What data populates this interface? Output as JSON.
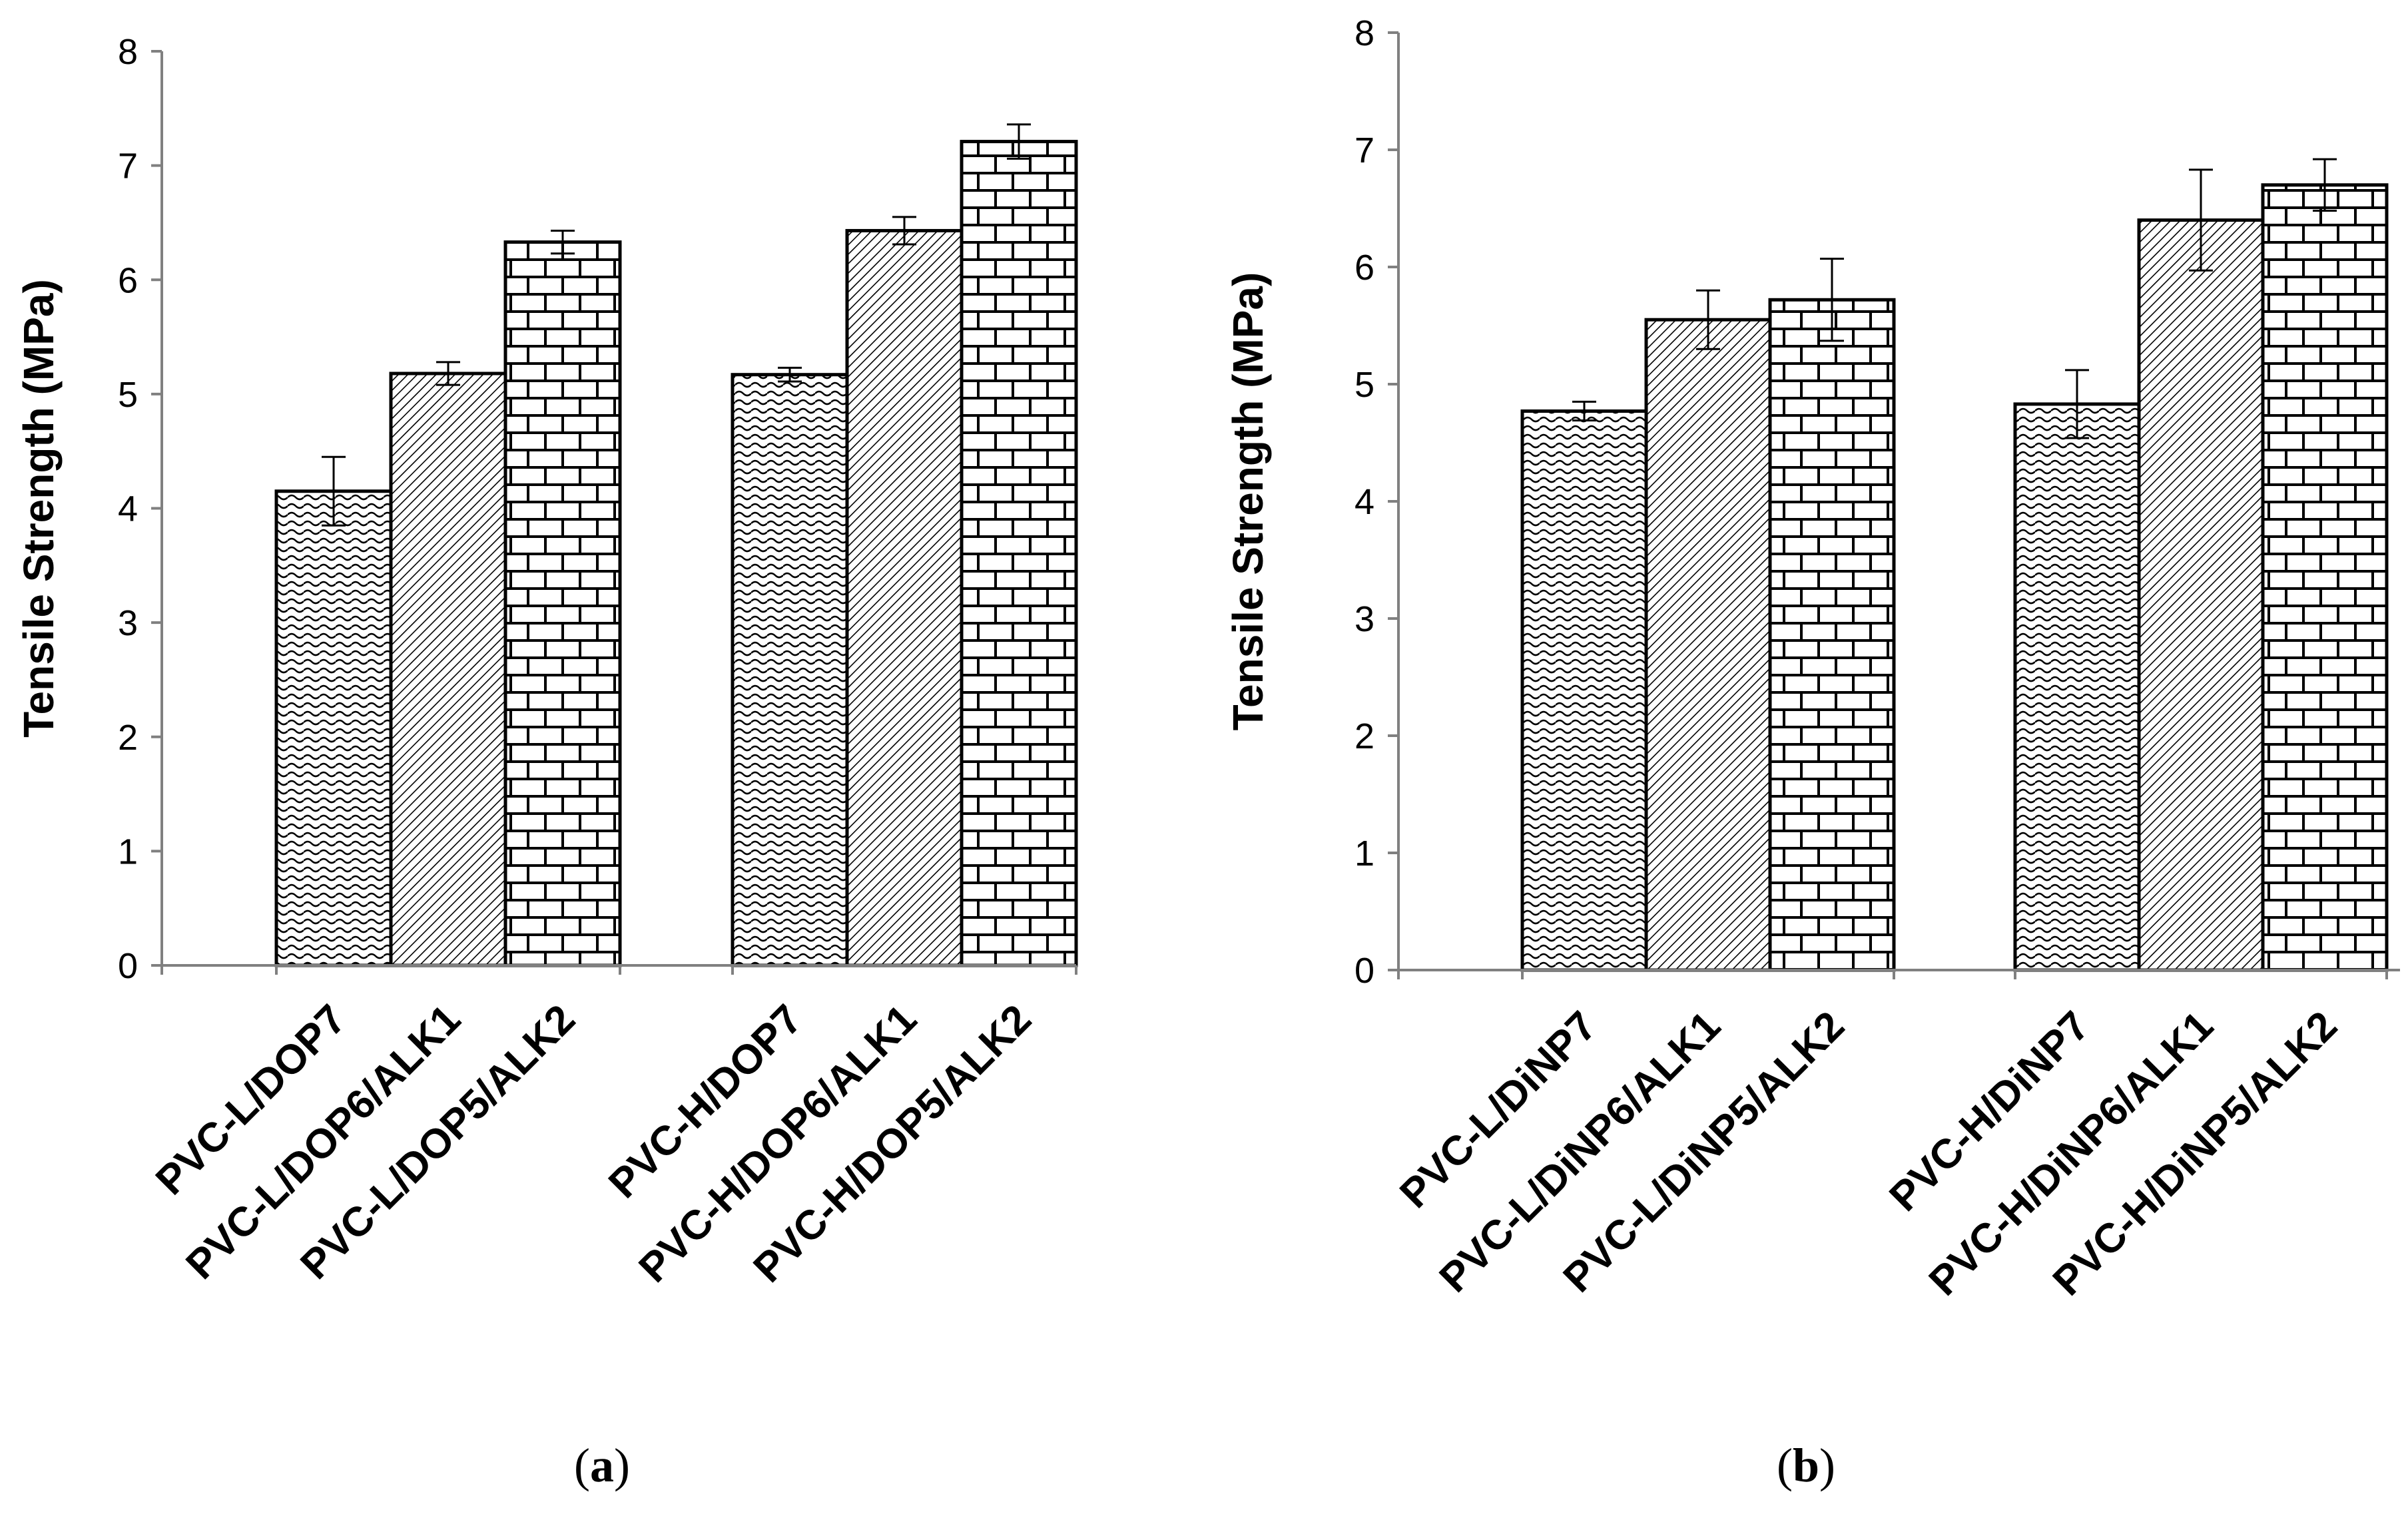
{
  "chart_data": [
    {
      "type": "bar",
      "caption": "(a)",
      "caption_letter": "a",
      "ylabel": "Tensile Strength (MPa)",
      "xlabel": "",
      "ylim": [
        0,
        8
      ],
      "yticks": [
        "0",
        "1",
        "2",
        "3",
        "4",
        "5",
        "6",
        "7",
        "8"
      ],
      "groups": [
        {
          "bars": [
            {
              "label": "PVC-L/DOP7",
              "value": 4.15,
              "error": 0.3,
              "pattern": "wave"
            },
            {
              "label": "PVC-L/DOP6/ALK1",
              "value": 5.18,
              "error": 0.1,
              "pattern": "diagonal"
            },
            {
              "label": "PVC-L/DOP5/ALK2",
              "value": 6.33,
              "error": 0.1,
              "pattern": "brick"
            }
          ]
        },
        {
          "bars": [
            {
              "label": "PVC-H/DOP7",
              "value": 5.17,
              "error": 0.06,
              "pattern": "wave"
            },
            {
              "label": "PVC-H/DOP6/ALK1",
              "value": 6.43,
              "error": 0.12,
              "pattern": "diagonal"
            },
            {
              "label": "PVC-H/DOP5/ALK2",
              "value": 7.21,
              "error": 0.15,
              "pattern": "brick"
            }
          ]
        }
      ]
    },
    {
      "type": "bar",
      "caption": "(b)",
      "caption_letter": "b",
      "ylabel": "Tensile Strength (MPa)",
      "xlabel": "",
      "ylim": [
        0,
        8
      ],
      "yticks": [
        "0",
        "1",
        "2",
        "3",
        "4",
        "5",
        "6",
        "7",
        "8"
      ],
      "groups": [
        {
          "bars": [
            {
              "label": "PVC-L/DiNP7",
              "value": 4.77,
              "error": 0.08,
              "pattern": "wave"
            },
            {
              "label": "PVC-L/DiNP6/ALK1",
              "value": 5.55,
              "error": 0.25,
              "pattern": "diagonal"
            },
            {
              "label": "PVC-L/DiNP5/ALK2",
              "value": 5.72,
              "error": 0.35,
              "pattern": "brick"
            }
          ]
        },
        {
          "bars": [
            {
              "label": "PVC-H/DiNP7",
              "value": 4.83,
              "error": 0.29,
              "pattern": "wave"
            },
            {
              "label": "PVC-H/DiNP6/ALK1",
              "value": 6.4,
              "error": 0.43,
              "pattern": "diagonal"
            },
            {
              "label": "PVC-H/DiNP5/ALK2",
              "value": 6.7,
              "error": 0.22,
              "pattern": "brick"
            }
          ]
        }
      ]
    }
  ]
}
